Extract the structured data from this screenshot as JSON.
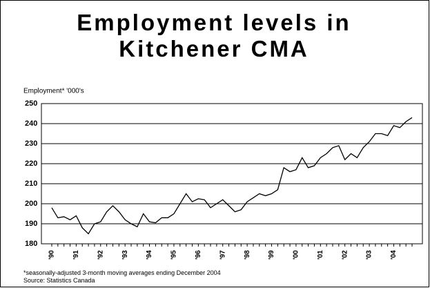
{
  "chart_data": {
    "type": "line",
    "title": "Employment levels in Kitchener CMA",
    "y_label": "Employment* '000's",
    "footnote": "*seasonally-adjusted 3-month moving averages ending December 2004",
    "source": "Source: Statistics Canada",
    "categories": [
      "'90",
      null,
      null,
      null,
      "'91",
      null,
      null,
      null,
      "'92",
      null,
      null,
      null,
      "'93",
      null,
      null,
      null,
      "'94",
      null,
      null,
      null,
      "'95",
      null,
      null,
      null,
      "'96",
      null,
      null,
      null,
      "'97",
      null,
      null,
      null,
      "'98",
      null,
      null,
      null,
      "'99",
      null,
      null,
      null,
      "'00",
      null,
      null,
      null,
      "'01",
      null,
      null,
      null,
      "'02",
      null,
      null,
      null,
      "'03",
      null,
      null,
      null,
      "'04",
      null,
      null,
      null
    ],
    "values": [
      198,
      193,
      193.5,
      192,
      194,
      188,
      185,
      190,
      191,
      196,
      199,
      196,
      192,
      190,
      188.5,
      195,
      191,
      190.5,
      193,
      193,
      195,
      200,
      205,
      201,
      202.5,
      202,
      198,
      200,
      202,
      199,
      196,
      197,
      201,
      203,
      205,
      204,
      205,
      207,
      218,
      216,
      217,
      223,
      218,
      219,
      223,
      225,
      228,
      229,
      222,
      225,
      223,
      228,
      231,
      235,
      235,
      234,
      239,
      238,
      241,
      243
    ],
    "color": "#000000",
    "ylim": [
      180,
      250
    ],
    "yticks": [
      180,
      190,
      200,
      210,
      220,
      230,
      240,
      250
    ],
    "grid": true
  }
}
